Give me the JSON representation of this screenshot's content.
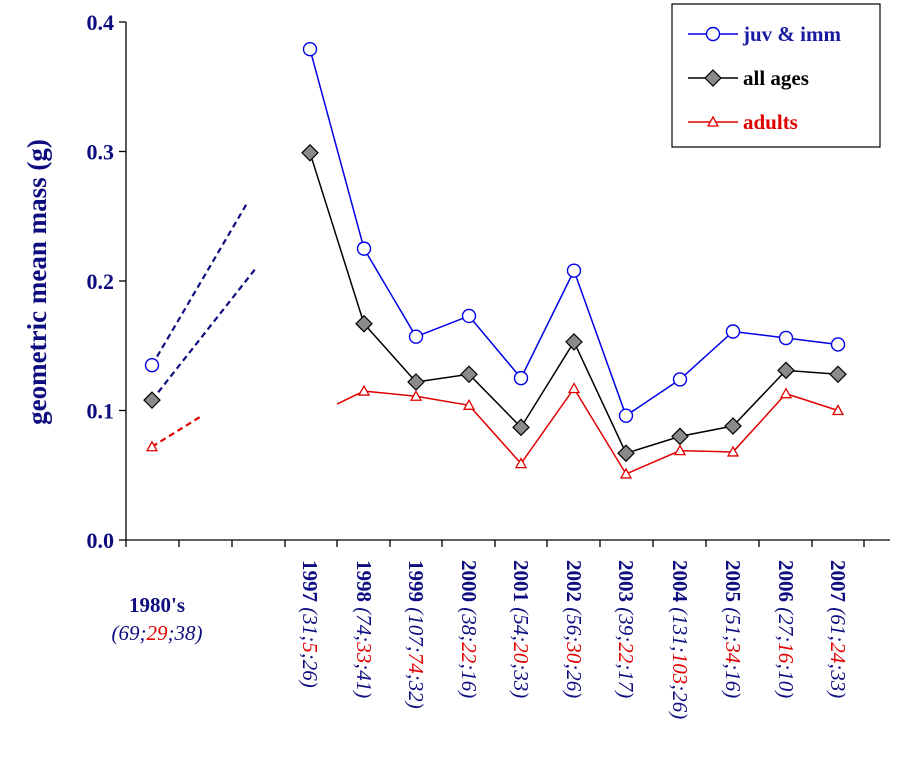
{
  "chart_data": {
    "type": "line",
    "ylabel": "geometric mean mass (g)",
    "ylim": [
      0,
      0.4
    ],
    "yticks": [
      "0.0",
      "0.1",
      "0.2",
      "0.3",
      "0.4"
    ],
    "grid": false,
    "legend_position": "top-right",
    "categories": [
      "1980's",
      "1997",
      "1998",
      "1999",
      "2000",
      "2001",
      "2002",
      "2003",
      "2004",
      "2005",
      "2006",
      "2007"
    ],
    "sample_sizes": [
      [
        "69",
        "29",
        "38"
      ],
      [
        "31",
        "5",
        "26"
      ],
      [
        "74",
        "33",
        "41"
      ],
      [
        "107",
        "74",
        "32"
      ],
      [
        "38",
        "22",
        "16"
      ],
      [
        "54",
        "20",
        "33"
      ],
      [
        "56",
        "30",
        "26"
      ],
      [
        "39",
        "22",
        "17"
      ],
      [
        "131",
        "103",
        "26"
      ],
      [
        "51",
        "34",
        "16"
      ],
      [
        "27",
        "16",
        "10"
      ],
      [
        "61",
        "24",
        "33"
      ]
    ],
    "series": [
      {
        "name": "juv & imm",
        "color": "#0000e6",
        "marker": "circle",
        "values": [
          0.135,
          0.379,
          0.225,
          0.157,
          0.173,
          0.125,
          0.208,
          0.096,
          0.124,
          0.161,
          0.156,
          0.151
        ],
        "dashed_trend_1980s": [
          0.135,
          0.26
        ]
      },
      {
        "name": "all ages",
        "color": "#000000",
        "marker": "diamond",
        "values": [
          0.108,
          0.299,
          0.167,
          0.122,
          0.128,
          0.087,
          0.153,
          0.067,
          0.08,
          0.088,
          0.131,
          0.128
        ],
        "dashed_trend_1980s": [
          0.108,
          0.209
        ]
      },
      {
        "name": "adults",
        "color": "#e00000",
        "marker": "triangle",
        "values": [
          0.072,
          null,
          0.115,
          0.111,
          0.104,
          0.059,
          0.117,
          0.051,
          0.069,
          0.068,
          0.113,
          0.1
        ],
        "dashed_trend_1980s": [
          0.072,
          0.095
        ],
        "lead_in_value": 0.105
      }
    ]
  }
}
